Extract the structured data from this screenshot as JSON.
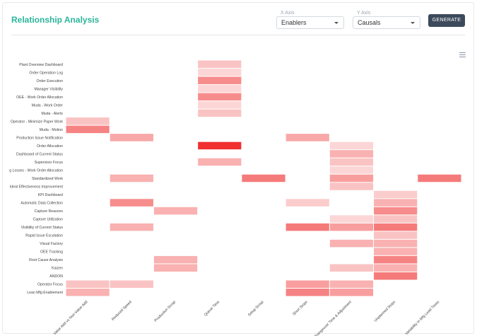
{
  "header": {
    "title": "Relationship Analysis",
    "generate_label": "GENERATE"
  },
  "x_axis_select": {
    "label": "X Axis",
    "value": "Enablers"
  },
  "y_axis_select": {
    "label": "Y Axis",
    "value": "Causals"
  },
  "colors": {
    "accent": "#2bb59a",
    "button": "#3c4a5c",
    "heat_max": "#f03030",
    "heat_min": "#fde8e8"
  },
  "icons": {
    "menu": "hamburger-menu-icon",
    "caret": "chevron-down-icon"
  },
  "chart_data": {
    "type": "heatmap",
    "x_categories": [
      "Value Add vs Non-Value Add",
      "Reduced Speed",
      "Production Scrap",
      "Queue Time",
      "Setup Scrap",
      "Short Stops",
      "Changeover Time & Adjustment",
      "Unplanned Stops",
      "Variability in Mfg Lead Times"
    ],
    "y_categories": [
      "Plant Overview Dashboard",
      "Order Operation Log",
      "Order Execution",
      "Manager Visibility",
      "OEE - Work Order Allocation",
      "Muda - Work Order",
      "Muda - Alerts",
      "Operator - Minimize Paper Work",
      "Muda - Motion",
      "Production Issue Notification",
      "Order Allocation",
      "Dashboard of Current Status",
      "Supervisor Focus",
      "g Losses - Work Order Allocation",
      "Standardized Work",
      "Ideal Effectiveness Improvement",
      "KPI Dashboard",
      "Automatic Data Collection",
      "Capture Reasons",
      "Capture Utilization",
      "Visibility of Current Status",
      "Rapid Issue Escalation",
      "Visual Factory",
      "OEE Tracking",
      "Root Cause Analysis",
      "Kaizen",
      "ANDON",
      "Operator Focus",
      "Lean Mfg Enablement"
    ],
    "cells": [
      [
        3,
        0,
        0.2
      ],
      [
        3,
        1,
        0.1
      ],
      [
        3,
        2,
        0.5
      ],
      [
        3,
        3,
        0.1
      ],
      [
        3,
        4,
        0.5
      ],
      [
        3,
        5,
        0.1
      ],
      [
        3,
        6,
        0.2
      ],
      [
        0,
        7,
        0.2
      ],
      [
        0,
        8,
        0.55
      ],
      [
        1,
        9,
        0.35
      ],
      [
        5,
        9,
        0.35
      ],
      [
        3,
        10,
        1.0
      ],
      [
        6,
        10,
        0.1
      ],
      [
        6,
        11,
        0.3
      ],
      [
        3,
        12,
        0.3
      ],
      [
        6,
        12,
        0.2
      ],
      [
        6,
        13,
        0.1
      ],
      [
        1,
        14,
        0.3
      ],
      [
        4,
        14,
        0.6
      ],
      [
        6,
        14,
        0.4
      ],
      [
        8,
        14,
        0.6
      ],
      [
        6,
        15,
        0.2
      ],
      [
        7,
        16,
        0.15
      ],
      [
        1,
        17,
        0.5
      ],
      [
        5,
        17,
        0.15
      ],
      [
        7,
        17,
        0.3
      ],
      [
        2,
        18,
        0.3
      ],
      [
        7,
        18,
        0.5
      ],
      [
        6,
        19,
        0.1
      ],
      [
        7,
        19,
        0.2
      ],
      [
        1,
        20,
        0.3
      ],
      [
        5,
        20,
        0.6
      ],
      [
        6,
        20,
        0.4
      ],
      [
        7,
        20,
        0.6
      ],
      [
        7,
        21,
        0.2
      ],
      [
        6,
        22,
        0.3
      ],
      [
        7,
        22,
        0.3
      ],
      [
        7,
        23,
        0.3
      ],
      [
        2,
        24,
        0.3
      ],
      [
        7,
        24,
        0.55
      ],
      [
        2,
        25,
        0.3
      ],
      [
        6,
        25,
        0.2
      ],
      [
        7,
        25,
        0.3
      ],
      [
        7,
        26,
        0.6
      ],
      [
        0,
        27,
        0.2
      ],
      [
        1,
        27,
        0.2
      ],
      [
        5,
        27,
        0.4
      ],
      [
        6,
        27,
        0.3
      ],
      [
        0,
        28,
        0.3
      ],
      [
        5,
        28,
        0.55
      ],
      [
        6,
        28,
        0.4
      ]
    ],
    "value_range": [
      0,
      1
    ],
    "legend": "none",
    "grid": false
  }
}
